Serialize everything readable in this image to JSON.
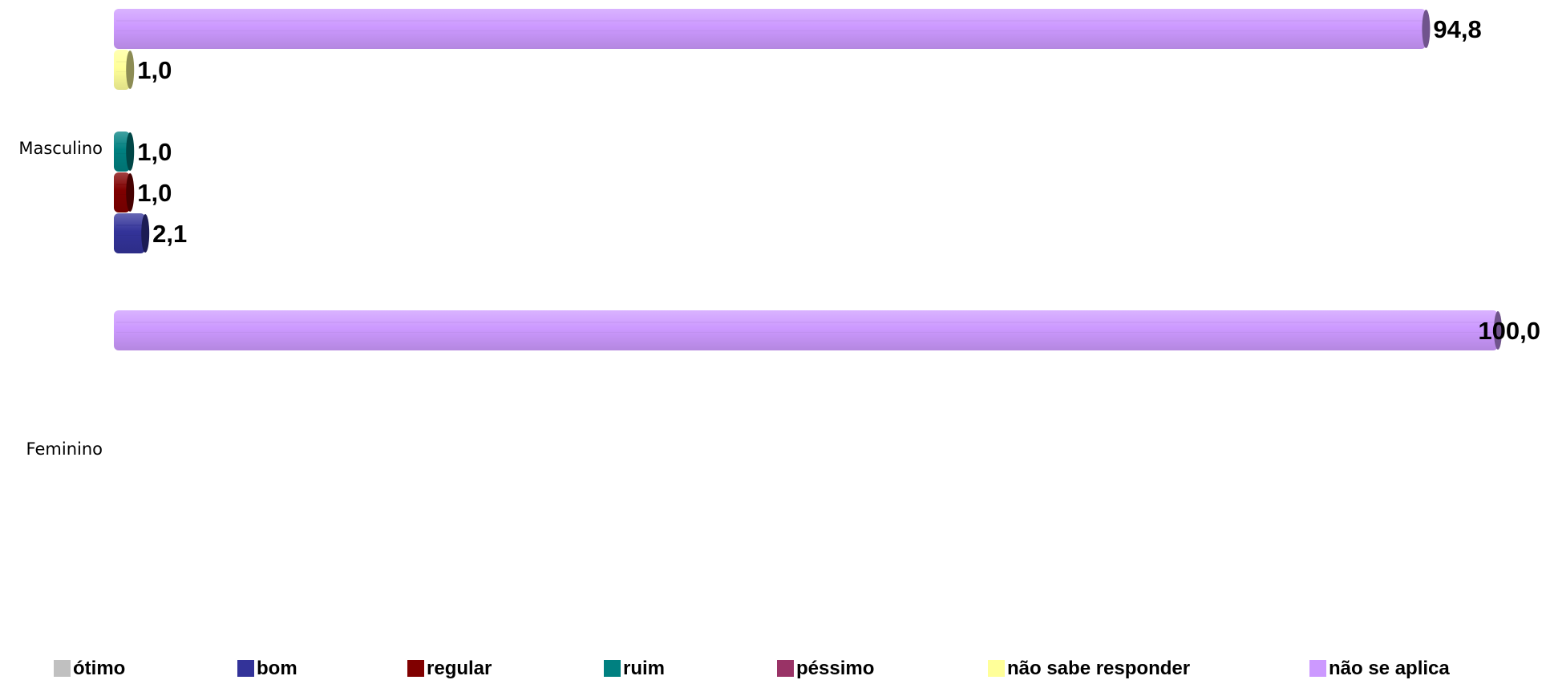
{
  "chart_data": {
    "type": "bar",
    "orientation": "horizontal",
    "categories": [
      "Masculino",
      "Feminino"
    ],
    "series": [
      {
        "name": "ótimo",
        "color": "#c0c0c0",
        "values": [
          null,
          null
        ]
      },
      {
        "name": "bom",
        "color": "#333399",
        "values": [
          2.1,
          null
        ]
      },
      {
        "name": "regular",
        "color": "#800000",
        "values": [
          1.0,
          null
        ]
      },
      {
        "name": "ruim",
        "color": "#008080",
        "values": [
          1.0,
          null
        ]
      },
      {
        "name": "péssimo",
        "color": "#993366",
        "values": [
          null,
          null
        ]
      },
      {
        "name": "não sabe responder",
        "color": "#ffff99",
        "values": [
          1.0,
          null
        ]
      },
      {
        "name": "não se aplica",
        "color": "#cc99ff",
        "values": [
          94.8,
          100.0
        ]
      }
    ],
    "value_labels": {
      "Masculino": [
        "",
        "2,1",
        "1,0",
        "1,0",
        "",
        "1,0",
        "94,8"
      ],
      "Feminino": [
        "",
        "",
        "",
        "",
        "",
        "",
        "100,0"
      ]
    },
    "xlim": [
      0,
      100
    ],
    "grid": false,
    "legend_position": "bottom"
  }
}
